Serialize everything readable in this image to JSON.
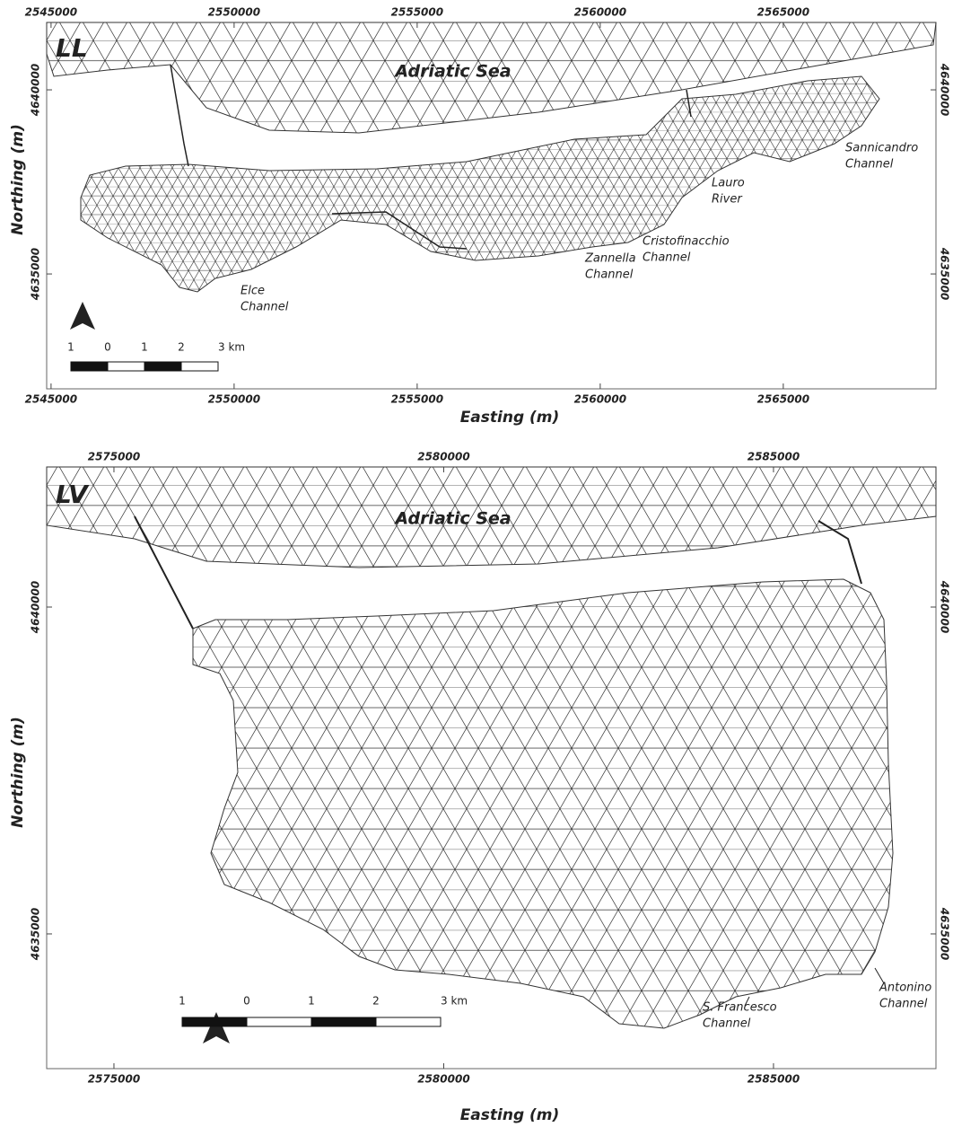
{
  "panels": [
    {
      "label": "LL",
      "sea": "Adriatic Sea",
      "xlabel": "Easting (m)",
      "ylabel": "Northing (m)",
      "xlim": [
        2544880,
        2569170
      ],
      "ylim": [
        4631880,
        4641830
      ],
      "xticks": [
        2545000,
        2550000,
        2555000,
        2560000,
        2565000
      ],
      "yticks": [
        4635000,
        4640000
      ],
      "places": [
        {
          "lines": [
            "Sannicandro",
            "Channel"
          ]
        },
        {
          "lines": [
            "Lauro",
            "River"
          ]
        },
        {
          "lines": [
            "Cristofinacchio",
            "Channel"
          ]
        },
        {
          "lines": [
            "Zannella",
            "Channel"
          ]
        },
        {
          "lines": [
            "Elce",
            "Channel"
          ]
        }
      ],
      "scale": [
        "1",
        "0",
        "1",
        "2",
        "3 km"
      ]
    },
    {
      "label": "LV",
      "sea": "Adriatic Sea",
      "xlabel": "Easting (m)",
      "ylabel": "Northing (m)",
      "xlim": [
        2573980,
        2587463
      ],
      "ylim": [
        4632939,
        4642143
      ],
      "xticks": [
        2575000,
        2580000,
        2585000
      ],
      "yticks": [
        4635000,
        4640000
      ],
      "places": [
        {
          "lines": [
            "Antonino",
            "Channel"
          ]
        },
        {
          "lines": [
            "S. Francesco",
            "Channel"
          ]
        }
      ],
      "scale": [
        "1",
        "0",
        "1",
        "2",
        "3 km"
      ]
    }
  ]
}
